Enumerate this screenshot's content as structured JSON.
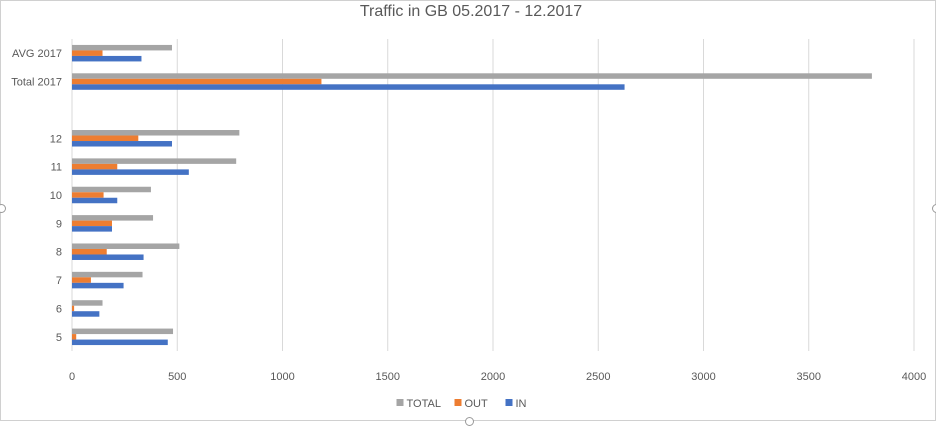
{
  "chart_data": {
    "type": "bar",
    "orientation": "horizontal",
    "title": "Traffic in GB 05.2017 - 12.2017",
    "categories": [
      "AVG 2017",
      "Total 2017",
      "",
      "12",
      "11",
      "10",
      "9",
      "8",
      "7",
      "6",
      "5"
    ],
    "series": [
      {
        "name": "TOTAL",
        "color": "#a5a5a5",
        "values": [
          475,
          3800,
          null,
          795,
          780,
          375,
          385,
          510,
          335,
          145,
          480
        ]
      },
      {
        "name": "OUT",
        "color": "#ed7d31",
        "values": [
          145,
          1185,
          null,
          315,
          215,
          150,
          190,
          165,
          90,
          10,
          20
        ]
      },
      {
        "name": "IN",
        "color": "#4472c4",
        "values": [
          330,
          2625,
          null,
          475,
          555,
          215,
          190,
          340,
          245,
          130,
          455
        ]
      }
    ],
    "xlim": [
      0,
      4000
    ],
    "xticks": [
      0,
      500,
      1000,
      1500,
      2000,
      2500,
      3000,
      3500,
      4000
    ],
    "grid": "vertical",
    "legend": "bottom"
  }
}
